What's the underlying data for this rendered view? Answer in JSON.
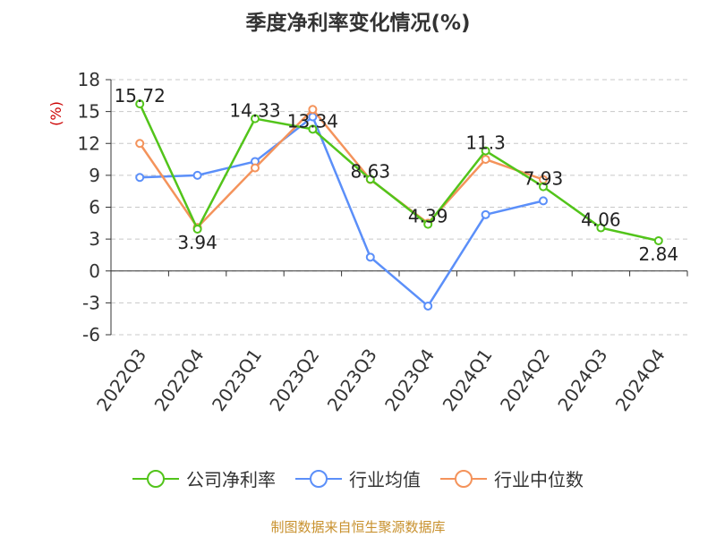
{
  "chart_data": {
    "type": "line",
    "title": "季度净利率变化情况(%)",
    "ylabel": "(%)",
    "xlabel": "",
    "categories": [
      "2022Q3",
      "2022Q4",
      "2023Q1",
      "2023Q2",
      "2023Q3",
      "2023Q4",
      "2024Q1",
      "2024Q2",
      "2024Q3",
      "2024Q4"
    ],
    "ylim": [
      -6,
      18
    ],
    "yticks": [
      "18",
      "15",
      "12",
      "9",
      "6",
      "3",
      "0",
      "-3",
      "-6"
    ],
    "grid": true,
    "legend_position": "bottom",
    "series": [
      {
        "name": "公司净利率",
        "color": "#52c41a",
        "values": [
          15.72,
          3.94,
          14.33,
          13.34,
          8.63,
          4.39,
          11.3,
          7.93,
          4.06,
          2.84
        ],
        "labels": [
          "15.72",
          "3.94",
          "14.33",
          "13.34",
          "8.63",
          "4.39",
          "11.3",
          "7.93",
          "4.06",
          "2.84"
        ]
      },
      {
        "name": "行业均值",
        "color": "#5b8ff9",
        "values": [
          8.8,
          9.0,
          10.3,
          14.5,
          1.3,
          -3.3,
          5.3,
          6.6,
          null,
          null
        ]
      },
      {
        "name": "行业中位数",
        "color": "#f4935b",
        "values": [
          12.0,
          4.1,
          9.7,
          15.2,
          8.6,
          4.5,
          10.5,
          8.6,
          null,
          null
        ]
      }
    ]
  },
  "source": "制图数据来自恒生聚源数据库"
}
